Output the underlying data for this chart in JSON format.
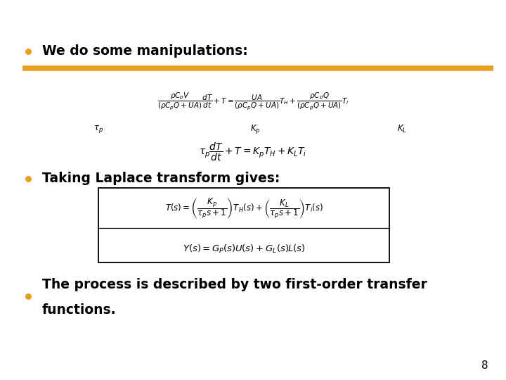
{
  "background_color": "#ffffff",
  "orange_line_color": "#E8A020",
  "bullet_color": "#E8A020",
  "text_color": "#000000",
  "bullet1": "We do some manipulations:",
  "bullet2": "Taking Laplace transform gives:",
  "bullet3_line1": "The process is described by two first-order transfer",
  "bullet3_line2": "functions.",
  "page_number": "8",
  "figsize": [
    7.2,
    5.4
  ],
  "dpi": 100
}
